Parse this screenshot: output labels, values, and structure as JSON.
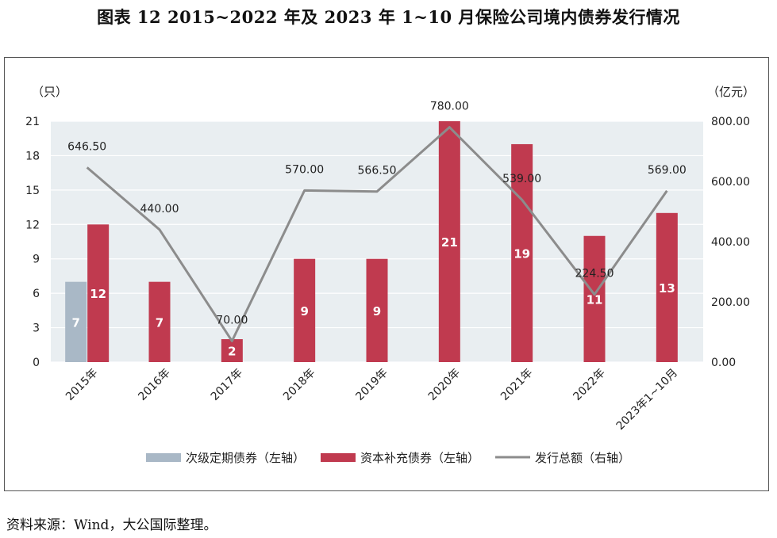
{
  "title": "图表 12  2015~2022 年及 2023 年 1~10 月保险公司境内债券发行情况",
  "source": "资料来源：Wind，大公国际整理。",
  "chart_data": {
    "type": "bar",
    "categories": [
      "2015年",
      "2016年",
      "2017年",
      "2018年",
      "2019年",
      "2020年",
      "2021年",
      "2022年",
      "2023年1~10月"
    ],
    "left_axis": {
      "unit_label": "（只）",
      "range": [
        0,
        21
      ],
      "ticks": [
        "0",
        "3",
        "6",
        "9",
        "12",
        "15",
        "18",
        "21"
      ]
    },
    "right_axis": {
      "unit_label": "（亿元）",
      "range": [
        0,
        800
      ],
      "ticks": [
        "0.00",
        "200.00",
        "400.00",
        "600.00",
        "800.00"
      ]
    },
    "series": [
      {
        "name": "次级定期债券（左轴）",
        "kind": "bar",
        "axis": "left",
        "color": "#a9b8c6",
        "values": [
          7,
          0,
          0,
          0,
          0,
          0,
          0,
          0,
          0
        ],
        "labels": [
          "7",
          "",
          "",
          "",
          "",
          "",
          "",
          "",
          ""
        ]
      },
      {
        "name": "资本补充债券（左轴）",
        "kind": "bar",
        "axis": "left",
        "color": "#c03a4f",
        "values": [
          12,
          7,
          2,
          9,
          9,
          21,
          19,
          11,
          13
        ],
        "labels": [
          "12",
          "7",
          "2",
          "9",
          "9",
          "21",
          "19",
          "11",
          "13"
        ]
      },
      {
        "name": "发行总额（右轴）",
        "kind": "line",
        "axis": "right",
        "color": "#8c8c8c",
        "values": [
          646.5,
          440,
          70,
          570,
          566.5,
          780,
          539,
          224.5,
          569
        ],
        "labels": [
          "646.50",
          "440.00",
          "70.00",
          "570.00",
          "566.50",
          "780.00",
          "539.00",
          "224.50",
          "569.00"
        ]
      }
    ],
    "legend_position": "bottom",
    "plot_background": "#e9eef1",
    "grid": true
  }
}
